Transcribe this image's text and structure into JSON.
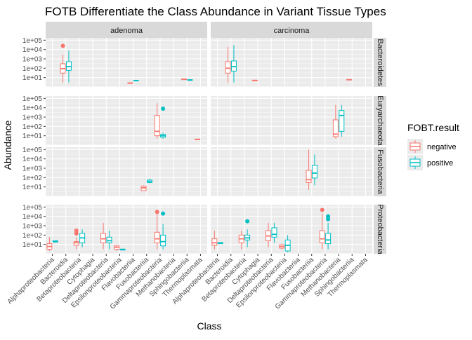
{
  "chart_data": {
    "type": "boxplot",
    "title": "FOTB Differentiate the Class Abundance in Variant Tissue Types",
    "xlabel": "Class",
    "ylabel": "Abundance",
    "yscale": "log10",
    "ylim": [
      1,
      100000
    ],
    "y_tick_labels": [
      "1e+01",
      "1e+02",
      "1e+03",
      "1e+04",
      "1e+05"
    ],
    "facet_cols": [
      "adenoma",
      "carcinoma"
    ],
    "facet_rows": [
      "Bacteroidetes",
      "Euryarchaeota",
      "Fusobacteria",
      "Proteobacteria"
    ],
    "facet_row_labels": [
      "Bacteroidetes",
      "Euryarchaeota",
      "Fusobacteria",
      "Proteobacteria"
    ],
    "categories": [
      "Alphaproteobacteria",
      "Bacteroidia",
      "Betaproteobacteria",
      "Cytophagia",
      "Deltaproteobacteria",
      "Epsilonproteobacteria",
      "Flavobacteriia",
      "Fusobacteriia",
      "Gammaproteobacteria",
      "Methanobacteria",
      "Sphingobacteriia",
      "Thermoplasmata"
    ],
    "legend": {
      "title": "FOBT.result",
      "position": "right",
      "entries": [
        {
          "name": "negative",
          "color": "#F8766D"
        },
        {
          "name": "positive",
          "color": "#00BFC4"
        }
      ]
    },
    "groups": [
      {
        "col": 0,
        "row": 0,
        "cat": 1,
        "group": "negative",
        "min": 3,
        "q1": 30,
        "median": 90,
        "q3": 300,
        "max": 3000,
        "outliers": [
          25000
        ]
      },
      {
        "col": 0,
        "row": 0,
        "cat": 1,
        "group": "positive",
        "min": 3,
        "q1": 60,
        "median": 150,
        "q3": 500,
        "max": 8000,
        "outliers": []
      },
      {
        "col": 0,
        "row": 0,
        "cat": 6,
        "group": "negative",
        "min": 2.5,
        "q1": 2.5,
        "median": 2.5,
        "q3": 2.8,
        "max": 3,
        "outliers": []
      },
      {
        "col": 0,
        "row": 0,
        "cat": 6,
        "group": "positive",
        "min": 4.5,
        "q1": 4.5,
        "median": 4.8,
        "q3": 5,
        "max": 5,
        "outliers": []
      },
      {
        "col": 0,
        "row": 0,
        "cat": 10,
        "group": "negative",
        "min": 6,
        "q1": 6,
        "median": 6.5,
        "q3": 7,
        "max": 7,
        "outliers": []
      },
      {
        "col": 0,
        "row": 0,
        "cat": 10,
        "group": "positive",
        "min": 5,
        "q1": 5,
        "median": 5.5,
        "q3": 6,
        "max": 6,
        "outliers": []
      },
      {
        "col": 1,
        "row": 0,
        "cat": 1,
        "group": "negative",
        "min": 3,
        "q1": 30,
        "median": 100,
        "q3": 500,
        "max": 20000,
        "outliers": []
      },
      {
        "col": 1,
        "row": 0,
        "cat": 1,
        "group": "positive",
        "min": 3,
        "q1": 50,
        "median": 150,
        "q3": 600,
        "max": 30000,
        "outliers": []
      },
      {
        "col": 1,
        "row": 0,
        "cat": 3,
        "group": "negative",
        "min": 4.5,
        "q1": 4.5,
        "median": 5,
        "q3": 5,
        "max": 5,
        "outliers": []
      },
      {
        "col": 1,
        "row": 0,
        "cat": 10,
        "group": "negative",
        "min": 5.5,
        "q1": 5.5,
        "median": 6,
        "q3": 6,
        "max": 6,
        "outliers": []
      },
      {
        "col": 0,
        "row": 1,
        "cat": 8,
        "group": "negative",
        "min": 5,
        "q1": 10,
        "median": 30,
        "q3": 1500,
        "max": 30000,
        "outliers": []
      },
      {
        "col": 0,
        "row": 1,
        "cat": 8,
        "group": "positive",
        "min": 5,
        "q1": 7,
        "median": 10,
        "q3": 14,
        "max": 20,
        "outliers": [
          8000
        ]
      },
      {
        "col": 0,
        "row": 1,
        "cat": 11,
        "group": "negative",
        "min": 4,
        "q1": 4,
        "median": 4,
        "q3": 4.5,
        "max": 4.5,
        "outliers": []
      },
      {
        "col": 1,
        "row": 1,
        "cat": 9,
        "group": "negative",
        "min": 5,
        "q1": 8,
        "median": 15,
        "q3": 500,
        "max": 20000,
        "outliers": []
      },
      {
        "col": 1,
        "row": 1,
        "cat": 9,
        "group": "positive",
        "min": 8,
        "q1": 30,
        "median": 1500,
        "q3": 5000,
        "max": 20000,
        "outliers": []
      },
      {
        "col": 0,
        "row": 2,
        "cat": 7,
        "group": "negative",
        "min": 4,
        "q1": 4,
        "median": 8,
        "q3": 12,
        "max": 15,
        "outliers": []
      },
      {
        "col": 0,
        "row": 2,
        "cat": 7,
        "group": "positive",
        "min": 25,
        "q1": 30,
        "median": 40,
        "q3": 55,
        "max": 70,
        "outliers": []
      },
      {
        "col": 1,
        "row": 2,
        "cat": 7,
        "group": "negative",
        "min": 5,
        "q1": 30,
        "median": 60,
        "q3": 600,
        "max": 100000,
        "outliers": []
      },
      {
        "col": 1,
        "row": 2,
        "cat": 7,
        "group": "positive",
        "min": 15,
        "q1": 90,
        "median": 300,
        "q3": 2000,
        "max": 30000,
        "outliers": []
      },
      {
        "col": 0,
        "row": 3,
        "cat": 0,
        "group": "negative",
        "min": 2,
        "q1": 3,
        "median": 6,
        "q3": 12,
        "max": 60,
        "outliers": []
      },
      {
        "col": 0,
        "row": 3,
        "cat": 0,
        "group": "positive",
        "min": 15,
        "q1": 18,
        "median": 20,
        "q3": 25,
        "max": 25,
        "outliers": []
      },
      {
        "col": 0,
        "row": 3,
        "cat": 2,
        "group": "negative",
        "min": 3,
        "q1": 8,
        "median": 15,
        "q3": 20,
        "max": 60,
        "outliers": [
          150,
          300
        ]
      },
      {
        "col": 0,
        "row": 3,
        "cat": 2,
        "group": "positive",
        "min": 5,
        "q1": 15,
        "median": 50,
        "q3": 150,
        "max": 400,
        "outliers": []
      },
      {
        "col": 0,
        "row": 3,
        "cat": 4,
        "group": "negative",
        "min": 3,
        "q1": 15,
        "median": 40,
        "q3": 150,
        "max": 2000,
        "outliers": []
      },
      {
        "col": 0,
        "row": 3,
        "cat": 4,
        "group": "positive",
        "min": 3,
        "q1": 15,
        "median": 25,
        "q3": 60,
        "max": 300,
        "outliers": []
      },
      {
        "col": 0,
        "row": 3,
        "cat": 5,
        "group": "negative",
        "min": 2,
        "q1": 3,
        "median": 5,
        "q3": 7,
        "max": 8,
        "outliers": []
      },
      {
        "col": 0,
        "row": 3,
        "cat": 5,
        "group": "positive",
        "min": 2.5,
        "q1": 2.5,
        "median": 3,
        "q3": 3,
        "max": 3,
        "outliers": []
      },
      {
        "col": 0,
        "row": 3,
        "cat": 8,
        "group": "negative",
        "min": 3,
        "q1": 15,
        "median": 40,
        "q3": 200,
        "max": 20000,
        "outliers": [
          30000
        ]
      },
      {
        "col": 0,
        "row": 3,
        "cat": 8,
        "group": "positive",
        "min": 3,
        "q1": 7,
        "median": 20,
        "q3": 100,
        "max": 1500,
        "outliers": [
          20000
        ]
      },
      {
        "col": 1,
        "row": 3,
        "cat": 0,
        "group": "negative",
        "min": 3,
        "q1": 8,
        "median": 15,
        "q3": 40,
        "max": 300,
        "outliers": []
      },
      {
        "col": 1,
        "row": 3,
        "cat": 0,
        "group": "positive",
        "min": 12,
        "q1": 12,
        "median": 15,
        "q3": 15,
        "max": 15,
        "outliers": []
      },
      {
        "col": 1,
        "row": 3,
        "cat": 2,
        "group": "negative",
        "min": 3,
        "q1": 15,
        "median": 40,
        "q3": 100,
        "max": 300,
        "outliers": []
      },
      {
        "col": 1,
        "row": 3,
        "cat": 2,
        "group": "positive",
        "min": 5,
        "q1": 30,
        "median": 50,
        "q3": 100,
        "max": 400,
        "outliers": [
          3000
        ]
      },
      {
        "col": 1,
        "row": 3,
        "cat": 4,
        "group": "negative",
        "min": 5,
        "q1": 25,
        "median": 80,
        "q3": 300,
        "max": 2000,
        "outliers": []
      },
      {
        "col": 1,
        "row": 3,
        "cat": 4,
        "group": "positive",
        "min": 15,
        "q1": 60,
        "median": 120,
        "q3": 600,
        "max": 2000,
        "outliers": []
      },
      {
        "col": 1,
        "row": 3,
        "cat": 5,
        "group": "negative",
        "min": 3,
        "q1": 4,
        "median": 6,
        "q3": 9,
        "max": 12,
        "outliers": []
      },
      {
        "col": 1,
        "row": 3,
        "cat": 5,
        "group": "positive",
        "min": 1.5,
        "q1": 2,
        "median": 8,
        "q3": 30,
        "max": 100,
        "outliers": []
      },
      {
        "col": 1,
        "row": 3,
        "cat": 8,
        "group": "negative",
        "min": 3,
        "q1": 15,
        "median": 40,
        "q3": 300,
        "max": 20000,
        "outliers": [
          50000
        ]
      },
      {
        "col": 1,
        "row": 3,
        "cat": 8,
        "group": "positive",
        "min": 3,
        "q1": 12,
        "median": 30,
        "q3": 150,
        "max": 2000,
        "outliers": [
          5000,
          10000
        ]
      }
    ]
  }
}
